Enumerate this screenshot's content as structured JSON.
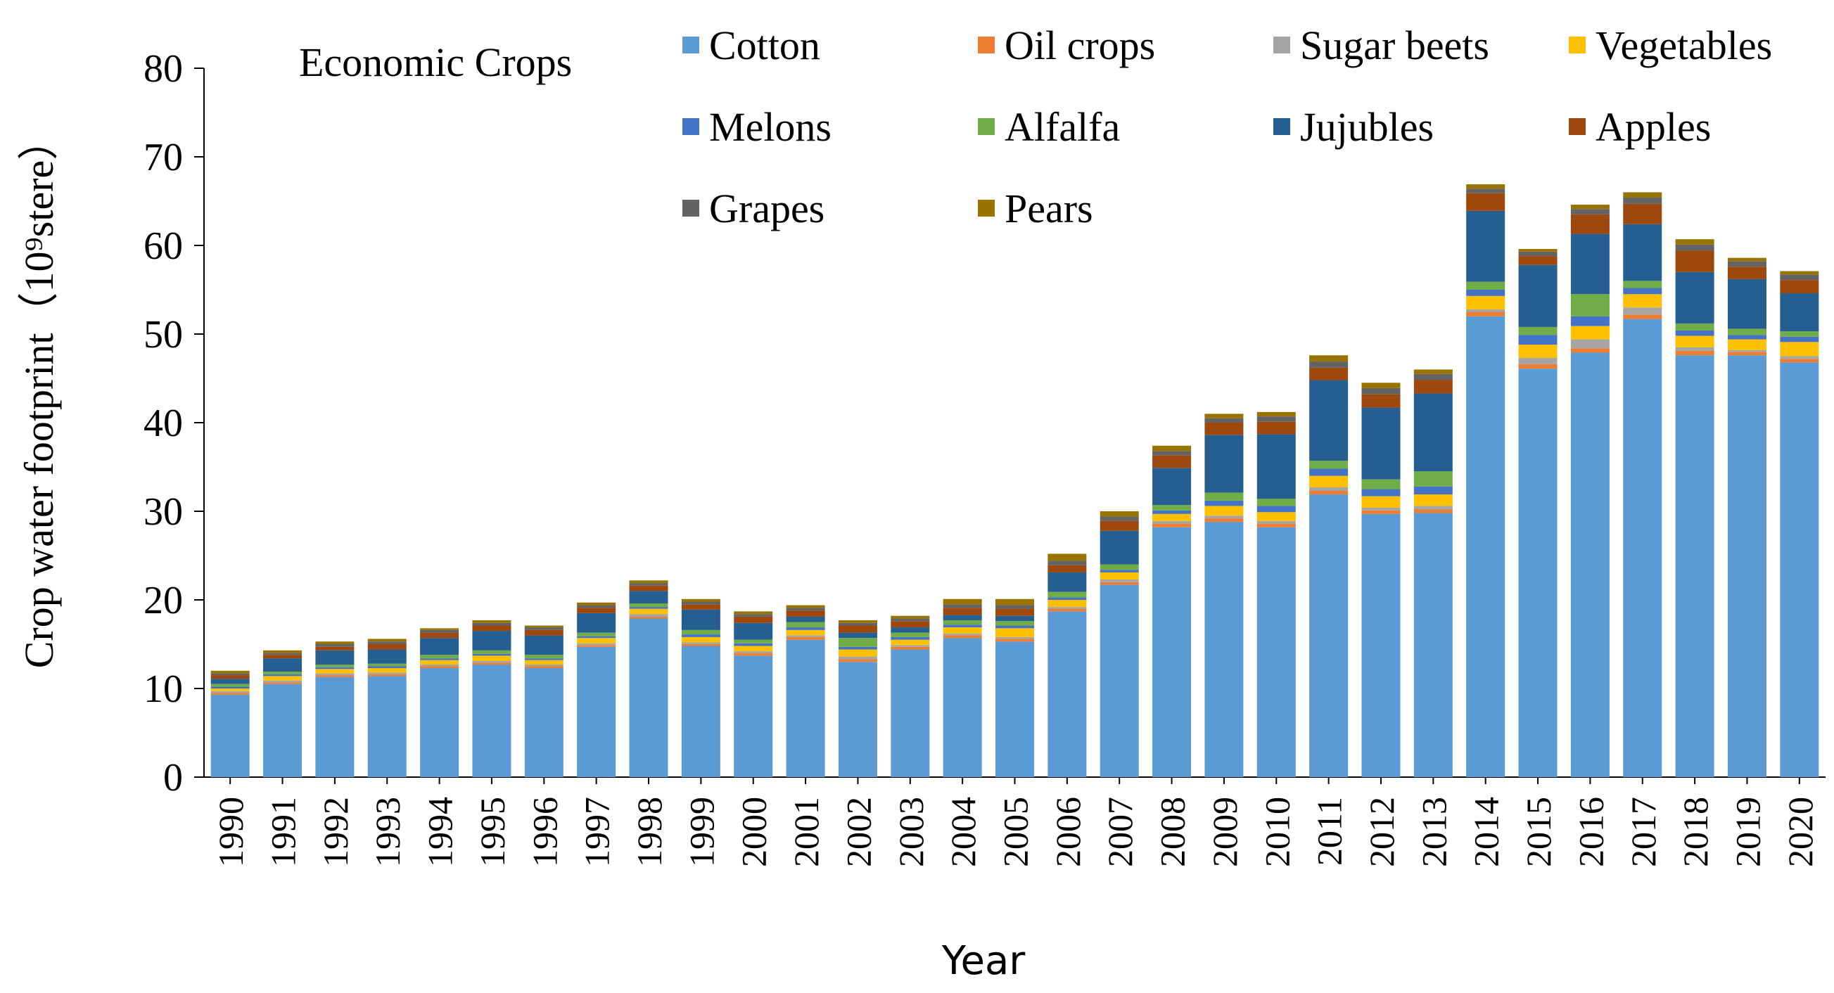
{
  "chart_data": {
    "type": "bar",
    "stacked": true,
    "title": "Economic Crops",
    "xlabel": "Year",
    "ylabel": "Crop water footprint（10⁹stere）",
    "ylim": [
      0,
      80
    ],
    "yticks": [
      0,
      10,
      20,
      30,
      40,
      50,
      60,
      70,
      80
    ],
    "grid": false,
    "legend_position": "top-right",
    "categories": [
      "1990",
      "1991",
      "1992",
      "1993",
      "1994",
      "1995",
      "1996",
      "1997",
      "1998",
      "1999",
      "2000",
      "2001",
      "2002",
      "2003",
      "2004",
      "2005",
      "2006",
      "2007",
      "2008",
      "2009",
      "2010",
      "2011",
      "2012",
      "2013",
      "2014",
      "2015",
      "2016",
      "2017",
      "2018",
      "2019",
      "2020"
    ],
    "series": [
      {
        "name": "Cotton",
        "color": "#5B9BD5",
        "values": [
          9.3,
          10.5,
          11.3,
          11.4,
          12.3,
          12.7,
          12.3,
          14.7,
          17.9,
          14.8,
          13.7,
          15.5,
          13.0,
          14.4,
          15.7,
          15.3,
          18.7,
          21.7,
          28.2,
          28.8,
          28.2,
          31.9,
          29.7,
          29.8,
          52.0,
          46.1,
          47.9,
          51.7,
          47.6,
          47.6,
          46.8
        ]
      },
      {
        "name": "Oil crops",
        "color": "#ED7D31",
        "values": [
          0.2,
          0.2,
          0.2,
          0.2,
          0.2,
          0.2,
          0.2,
          0.2,
          0.2,
          0.2,
          0.3,
          0.3,
          0.3,
          0.3,
          0.3,
          0.3,
          0.3,
          0.3,
          0.4,
          0.4,
          0.4,
          0.4,
          0.4,
          0.4,
          0.5,
          0.5,
          0.5,
          0.5,
          0.5,
          0.4,
          0.4
        ]
      },
      {
        "name": "Sugar beets",
        "color": "#A5A5A5",
        "values": [
          0.2,
          0.2,
          0.2,
          0.2,
          0.2,
          0.2,
          0.2,
          0.2,
          0.3,
          0.2,
          0.2,
          0.2,
          0.3,
          0.2,
          0.2,
          0.2,
          0.2,
          0.3,
          0.3,
          0.3,
          0.3,
          0.4,
          0.3,
          0.4,
          0.3,
          0.7,
          1.0,
          0.8,
          0.4,
          0.2,
          0.3
        ]
      },
      {
        "name": "Vegetables",
        "color": "#FFC000",
        "values": [
          0.3,
          0.5,
          0.5,
          0.5,
          0.5,
          0.6,
          0.5,
          0.6,
          0.6,
          0.6,
          0.6,
          0.6,
          0.8,
          0.6,
          0.7,
          1.0,
          0.8,
          0.8,
          0.8,
          1.1,
          1.0,
          1.3,
          1.3,
          1.3,
          1.5,
          1.5,
          1.5,
          1.5,
          1.3,
          1.2,
          1.6
        ]
      },
      {
        "name": "Melons",
        "color": "#4472C4",
        "values": [
          0.2,
          0.2,
          0.2,
          0.2,
          0.2,
          0.2,
          0.2,
          0.2,
          0.2,
          0.3,
          0.3,
          0.3,
          0.3,
          0.3,
          0.3,
          0.3,
          0.3,
          0.3,
          0.4,
          0.6,
          0.7,
          0.8,
          0.8,
          0.9,
          0.7,
          1.1,
          1.1,
          0.7,
          0.6,
          0.5,
          0.6
        ]
      },
      {
        "name": "Alfalfa",
        "color": "#70AD47",
        "values": [
          0.3,
          0.3,
          0.3,
          0.3,
          0.4,
          0.4,
          0.4,
          0.4,
          0.4,
          0.5,
          0.4,
          0.6,
          1.0,
          0.5,
          0.5,
          0.5,
          0.6,
          0.6,
          0.6,
          0.9,
          0.8,
          0.9,
          1.1,
          1.7,
          0.9,
          0.9,
          2.5,
          0.8,
          0.8,
          0.7,
          0.6
        ]
      },
      {
        "name": "Jujubles",
        "color": "#255E91",
        "values": [
          0.6,
          1.5,
          1.6,
          1.6,
          1.9,
          2.2,
          2.2,
          2.2,
          1.4,
          2.3,
          1.9,
          0.6,
          0.6,
          0.6,
          0.6,
          0.6,
          2.2,
          3.8,
          4.2,
          6.5,
          7.3,
          9.1,
          8.1,
          8.8,
          8.0,
          7.0,
          6.8,
          6.4,
          5.8,
          5.6,
          4.3
        ]
      },
      {
        "name": "Apples",
        "color": "#9E480E",
        "values": [
          0.4,
          0.4,
          0.4,
          0.6,
          0.6,
          0.6,
          0.6,
          0.6,
          0.6,
          0.6,
          0.7,
          0.7,
          0.8,
          0.7,
          0.8,
          0.8,
          0.8,
          1.1,
          1.4,
          1.4,
          1.4,
          1.4,
          1.5,
          1.5,
          2.0,
          1.0,
          2.2,
          2.3,
          2.4,
          1.4,
          1.5
        ]
      },
      {
        "name": "Grapes",
        "color": "#636363",
        "values": [
          0.2,
          0.2,
          0.3,
          0.3,
          0.3,
          0.3,
          0.3,
          0.3,
          0.3,
          0.3,
          0.3,
          0.3,
          0.3,
          0.3,
          0.4,
          0.4,
          0.5,
          0.5,
          0.5,
          0.5,
          0.6,
          0.7,
          0.7,
          0.7,
          0.5,
          0.5,
          0.6,
          0.7,
          0.7,
          0.6,
          0.6
        ]
      },
      {
        "name": "Pears",
        "color": "#997300",
        "values": [
          0.3,
          0.3,
          0.3,
          0.3,
          0.2,
          0.3,
          0.2,
          0.3,
          0.3,
          0.3,
          0.3,
          0.3,
          0.3,
          0.3,
          0.6,
          0.7,
          0.8,
          0.6,
          0.6,
          0.5,
          0.5,
          0.7,
          0.6,
          0.5,
          0.5,
          0.3,
          0.5,
          0.6,
          0.6,
          0.4,
          0.4
        ]
      }
    ]
  }
}
